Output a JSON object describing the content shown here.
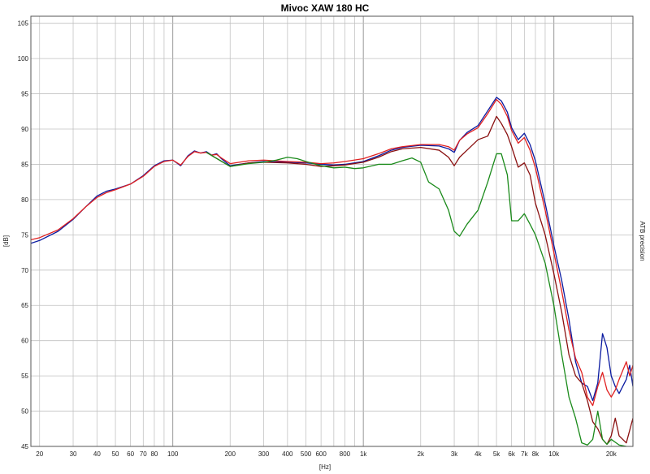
{
  "chart_data": {
    "type": "line",
    "title": "Mivoc XAW 180 HC",
    "xlabel": "[Hz]",
    "ylabel": "[dB]",
    "side_label": "ATB precision",
    "x_scale": "log",
    "xlim": [
      18,
      26000
    ],
    "ylim": [
      45,
      106
    ],
    "grid": true,
    "x_ticks": [
      {
        "value": 20,
        "label": "20"
      },
      {
        "value": 30,
        "label": "30"
      },
      {
        "value": 40,
        "label": "40"
      },
      {
        "value": 50,
        "label": "50"
      },
      {
        "value": 60,
        "label": "60"
      },
      {
        "value": 70,
        "label": "70"
      },
      {
        "value": 80,
        "label": "80"
      },
      {
        "value": 100,
        "label": "100"
      },
      {
        "value": 200,
        "label": "200"
      },
      {
        "value": 300,
        "label": "300"
      },
      {
        "value": 400,
        "label": "400"
      },
      {
        "value": 500,
        "label": "500"
      },
      {
        "value": 600,
        "label": "600"
      },
      {
        "value": 800,
        "label": "800"
      },
      {
        "value": 1000,
        "label": "1k"
      },
      {
        "value": 2000,
        "label": "2k"
      },
      {
        "value": 3000,
        "label": "3k"
      },
      {
        "value": 4000,
        "label": "4k"
      },
      {
        "value": 5000,
        "label": "5k"
      },
      {
        "value": 6000,
        "label": "6k"
      },
      {
        "value": 7000,
        "label": "7k"
      },
      {
        "value": 8000,
        "label": "8k"
      },
      {
        "value": 10000,
        "label": "10k"
      },
      {
        "value": 20000,
        "label": "20k"
      }
    ],
    "y_ticks": [
      45,
      50,
      55,
      60,
      65,
      70,
      75,
      80,
      85,
      90,
      95,
      100,
      105
    ],
    "series": [
      {
        "color": "#0a1aa0",
        "points": [
          [
            18,
            73.8
          ],
          [
            20,
            74.2
          ],
          [
            25,
            75.5
          ],
          [
            30,
            77.2
          ],
          [
            35,
            79
          ],
          [
            40,
            80.5
          ],
          [
            45,
            81.2
          ],
          [
            50,
            81.5
          ],
          [
            60,
            82.2
          ],
          [
            70,
            83.4
          ],
          [
            80,
            84.8
          ],
          [
            90,
            85.5
          ],
          [
            100,
            85.6
          ],
          [
            110,
            84.8
          ],
          [
            120,
            86.2
          ],
          [
            130,
            86.9
          ],
          [
            140,
            86.6
          ],
          [
            150,
            86.8
          ],
          [
            160,
            86.3
          ],
          [
            170,
            86.5
          ],
          [
            180,
            85.8
          ],
          [
            200,
            84.8
          ],
          [
            250,
            85.2
          ],
          [
            300,
            85.4
          ],
          [
            400,
            85.3
          ],
          [
            500,
            85.2
          ],
          [
            600,
            85.0
          ],
          [
            700,
            84.9
          ],
          [
            800,
            85.0
          ],
          [
            1000,
            85.4
          ],
          [
            1200,
            86.2
          ],
          [
            1400,
            87.0
          ],
          [
            1600,
            87.4
          ],
          [
            2000,
            87.7
          ],
          [
            2500,
            87.6
          ],
          [
            2800,
            87.2
          ],
          [
            3000,
            86.7
          ],
          [
            3200,
            88.4
          ],
          [
            3500,
            89.5
          ],
          [
            4000,
            90.5
          ],
          [
            4500,
            92.6
          ],
          [
            5000,
            94.5
          ],
          [
            5300,
            94.0
          ],
          [
            5700,
            92.4
          ],
          [
            6000,
            90.2
          ],
          [
            6500,
            88.5
          ],
          [
            7000,
            89.4
          ],
          [
            7500,
            87.8
          ],
          [
            8000,
            85.5
          ],
          [
            9000,
            79.5
          ],
          [
            10000,
            73.5
          ],
          [
            11000,
            68.5
          ],
          [
            12000,
            63.0
          ],
          [
            13000,
            57.0
          ],
          [
            14000,
            54.0
          ],
          [
            15000,
            53.5
          ],
          [
            16000,
            51.5
          ],
          [
            17000,
            54.0
          ],
          [
            18000,
            61.0
          ],
          [
            19000,
            59.0
          ],
          [
            20000,
            55.0
          ],
          [
            21000,
            53.5
          ],
          [
            22000,
            52.5
          ],
          [
            24000,
            54.5
          ],
          [
            25000,
            56.5
          ],
          [
            26000,
            53.5
          ]
        ]
      },
      {
        "color": "#e02020",
        "points": [
          [
            18,
            74.3
          ],
          [
            20,
            74.6
          ],
          [
            25,
            75.7
          ],
          [
            30,
            77.3
          ],
          [
            35,
            79
          ],
          [
            40,
            80.3
          ],
          [
            45,
            81.0
          ],
          [
            50,
            81.4
          ],
          [
            60,
            82.2
          ],
          [
            70,
            83.3
          ],
          [
            80,
            84.7
          ],
          [
            90,
            85.4
          ],
          [
            100,
            85.6
          ],
          [
            110,
            84.9
          ],
          [
            120,
            86.1
          ],
          [
            130,
            86.8
          ],
          [
            140,
            86.6
          ],
          [
            150,
            86.7
          ],
          [
            160,
            86.3
          ],
          [
            170,
            86.4
          ],
          [
            180,
            85.9
          ],
          [
            200,
            85.1
          ],
          [
            250,
            85.5
          ],
          [
            300,
            85.6
          ],
          [
            400,
            85.4
          ],
          [
            500,
            85.3
          ],
          [
            600,
            85.1
          ],
          [
            700,
            85.2
          ],
          [
            800,
            85.4
          ],
          [
            1000,
            85.8
          ],
          [
            1200,
            86.5
          ],
          [
            1400,
            87.2
          ],
          [
            1600,
            87.5
          ],
          [
            2000,
            87.8
          ],
          [
            2500,
            87.8
          ],
          [
            2800,
            87.5
          ],
          [
            3000,
            87.0
          ],
          [
            3200,
            88.4
          ],
          [
            3500,
            89.3
          ],
          [
            4000,
            90.2
          ],
          [
            4500,
            92.2
          ],
          [
            5000,
            94.2
          ],
          [
            5300,
            93.5
          ],
          [
            5700,
            91.8
          ],
          [
            6000,
            89.8
          ],
          [
            6500,
            88.0
          ],
          [
            7000,
            88.8
          ],
          [
            7500,
            87.0
          ],
          [
            8000,
            84.5
          ],
          [
            9000,
            78.5
          ],
          [
            10000,
            72.5
          ],
          [
            11000,
            67.0
          ],
          [
            12000,
            61.5
          ],
          [
            13000,
            57.5
          ],
          [
            14000,
            55.5
          ],
          [
            15000,
            52.0
          ],
          [
            16000,
            50.8
          ],
          [
            17000,
            53.5
          ],
          [
            18000,
            55.5
          ],
          [
            19000,
            53.0
          ],
          [
            20000,
            52.0
          ],
          [
            21000,
            53.0
          ],
          [
            22000,
            54.5
          ],
          [
            24000,
            57.0
          ],
          [
            25000,
            55.0
          ],
          [
            26000,
            56.5
          ]
        ]
      },
      {
        "color": "#8a1010",
        "points": [
          [
            150,
            86.7
          ],
          [
            200,
            84.7
          ],
          [
            250,
            85.2
          ],
          [
            300,
            85.3
          ],
          [
            400,
            85.2
          ],
          [
            500,
            85.0
          ],
          [
            600,
            84.7
          ],
          [
            700,
            84.8
          ],
          [
            800,
            84.9
          ],
          [
            1000,
            85.3
          ],
          [
            1200,
            86.0
          ],
          [
            1400,
            86.8
          ],
          [
            1600,
            87.2
          ],
          [
            2000,
            87.4
          ],
          [
            2500,
            87.0
          ],
          [
            2800,
            86.0
          ],
          [
            3000,
            84.8
          ],
          [
            3200,
            86.0
          ],
          [
            3500,
            87.0
          ],
          [
            4000,
            88.5
          ],
          [
            4500,
            89.0
          ],
          [
            5000,
            91.8
          ],
          [
            5300,
            90.8
          ],
          [
            5700,
            89.2
          ],
          [
            6000,
            87.5
          ],
          [
            6500,
            84.6
          ],
          [
            7000,
            85.2
          ],
          [
            7500,
            83.5
          ],
          [
            8000,
            79.5
          ],
          [
            9000,
            75.0
          ],
          [
            10000,
            69.5
          ],
          [
            11000,
            64.0
          ],
          [
            12000,
            58.0
          ],
          [
            13000,
            55.0
          ],
          [
            14000,
            54.0
          ],
          [
            15000,
            51.5
          ],
          [
            16000,
            48.5
          ],
          [
            17000,
            47.5
          ],
          [
            18000,
            46.0
          ],
          [
            19000,
            45.3
          ],
          [
            20000,
            46.5
          ],
          [
            21000,
            49.0
          ],
          [
            22000,
            46.5
          ],
          [
            24000,
            45.5
          ],
          [
            26000,
            49.0
          ]
        ]
      },
      {
        "color": "#1a8a1a",
        "points": [
          [
            150,
            86.7
          ],
          [
            200,
            84.7
          ],
          [
            250,
            85.1
          ],
          [
            300,
            85.3
          ],
          [
            350,
            85.6
          ],
          [
            400,
            86.0
          ],
          [
            450,
            85.8
          ],
          [
            500,
            85.4
          ],
          [
            600,
            84.8
          ],
          [
            700,
            84.5
          ],
          [
            800,
            84.6
          ],
          [
            900,
            84.4
          ],
          [
            1000,
            84.5
          ],
          [
            1200,
            85.0
          ],
          [
            1400,
            85.0
          ],
          [
            1600,
            85.5
          ],
          [
            1800,
            85.9
          ],
          [
            2000,
            85.3
          ],
          [
            2200,
            82.5
          ],
          [
            2500,
            81.5
          ],
          [
            2800,
            78.5
          ],
          [
            3000,
            75.5
          ],
          [
            3200,
            74.8
          ],
          [
            3500,
            76.5
          ],
          [
            4000,
            78.5
          ],
          [
            4500,
            82.5
          ],
          [
            5000,
            86.5
          ],
          [
            5300,
            86.5
          ],
          [
            5700,
            83.5
          ],
          [
            6000,
            77.0
          ],
          [
            6500,
            77.0
          ],
          [
            7000,
            78.0
          ],
          [
            7500,
            76.5
          ],
          [
            8000,
            75.0
          ],
          [
            9000,
            71.0
          ],
          [
            10000,
            65.0
          ],
          [
            11000,
            58.0
          ],
          [
            12000,
            52.0
          ],
          [
            13000,
            49.0
          ],
          [
            14000,
            45.5
          ],
          [
            15000,
            45.2
          ],
          [
            16000,
            46.0
          ],
          [
            17000,
            50.0
          ],
          [
            18000,
            46.0
          ],
          [
            19000,
            45.3
          ],
          [
            20000,
            46.0
          ],
          [
            22000,
            45.2
          ],
          [
            24000,
            45.0
          ]
        ]
      }
    ]
  }
}
